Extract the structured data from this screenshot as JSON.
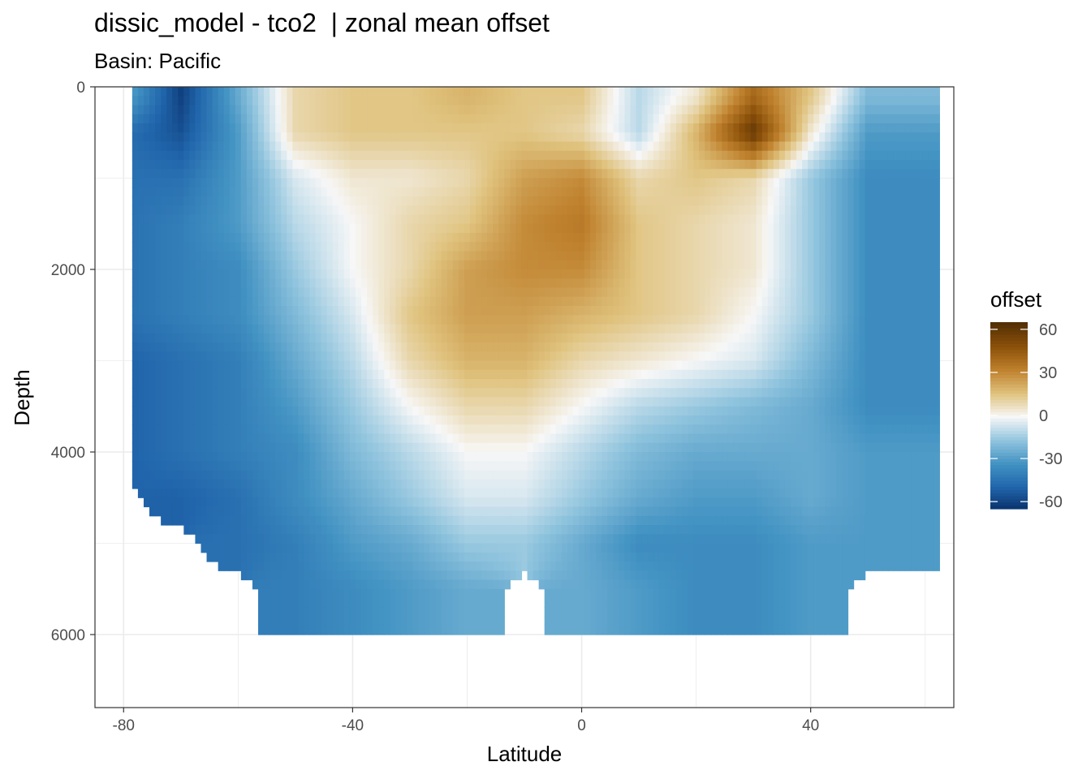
{
  "chart_data": {
    "type": "heatmap",
    "title": "dissic_model - tco2  | zonal mean offset",
    "subtitle": "Basin: Pacific",
    "xlabel": "Latitude",
    "ylabel": "Depth",
    "xlim": [
      -85,
      65
    ],
    "ylim": [
      6800,
      0
    ],
    "y_reversed": true,
    "x_ticks": [
      -80,
      -40,
      0,
      40
    ],
    "y_ticks": [
      0,
      2000,
      4000,
      6000
    ],
    "grid": true,
    "legend": {
      "title": "offset",
      "placement": "right",
      "breaks": [
        60,
        30,
        0,
        -30,
        -60
      ],
      "range": [
        -65,
        65
      ],
      "out_of_range_color": "#ff0000",
      "colors": [
        "#08306b",
        "#2166ac",
        "#4393c3",
        "#92c5de",
        "#f7f7f7",
        "#dfc27d",
        "#bf812d",
        "#8c510a",
        "#543005"
      ]
    },
    "x": [
      -80,
      -70,
      -60,
      -50,
      -40,
      -30,
      -20,
      -10,
      0,
      10,
      20,
      30,
      40,
      50
    ],
    "y": [
      100,
      500,
      1000,
      1500,
      2000,
      2500,
      3000,
      3500,
      4000,
      4500,
      5000,
      5500
    ],
    "z": [
      [
        -25,
        -60,
        -25,
        10,
        15,
        15,
        20,
        15,
        15,
        -10,
        5,
        40,
        15,
        -20
      ],
      [
        -45,
        -55,
        -30,
        10,
        15,
        15,
        15,
        15,
        10,
        -10,
        20,
        60,
        5,
        -30
      ],
      [
        -45,
        -45,
        -30,
        -5,
        5,
        5,
        10,
        25,
        30,
        10,
        15,
        10,
        -15,
        -35
      ],
      [
        -45,
        -40,
        -30,
        -10,
        0,
        10,
        15,
        30,
        35,
        15,
        10,
        5,
        -15,
        -35
      ],
      [
        -45,
        -40,
        -35,
        -15,
        0,
        10,
        25,
        30,
        30,
        15,
        10,
        5,
        -15,
        -35
      ],
      [
        -45,
        -40,
        -35,
        -20,
        -5,
        15,
        25,
        25,
        20,
        15,
        10,
        0,
        -15,
        -35
      ],
      [
        -50,
        -45,
        -40,
        -25,
        -10,
        10,
        20,
        20,
        10,
        5,
        0,
        -5,
        -20,
        -35
      ],
      [
        -50,
        -45,
        -40,
        -30,
        -15,
        0,
        10,
        10,
        0,
        -10,
        -15,
        -20,
        -25,
        -35
      ],
      [
        -50,
        -45,
        -40,
        -35,
        -20,
        -10,
        0,
        0,
        -10,
        -20,
        -25,
        -25,
        -25,
        -30
      ],
      [
        null,
        -50,
        -45,
        -35,
        -25,
        -15,
        -5,
        -5,
        -15,
        -25,
        -30,
        -30,
        -25,
        -30
      ],
      [
        null,
        null,
        -45,
        -40,
        -30,
        -25,
        -15,
        -15,
        -25,
        -35,
        -35,
        -35,
        -30,
        -30
      ],
      [
        null,
        null,
        null,
        -40,
        -35,
        -30,
        -25,
        null,
        -25,
        -30,
        -35,
        -35,
        -30,
        null
      ]
    ]
  }
}
